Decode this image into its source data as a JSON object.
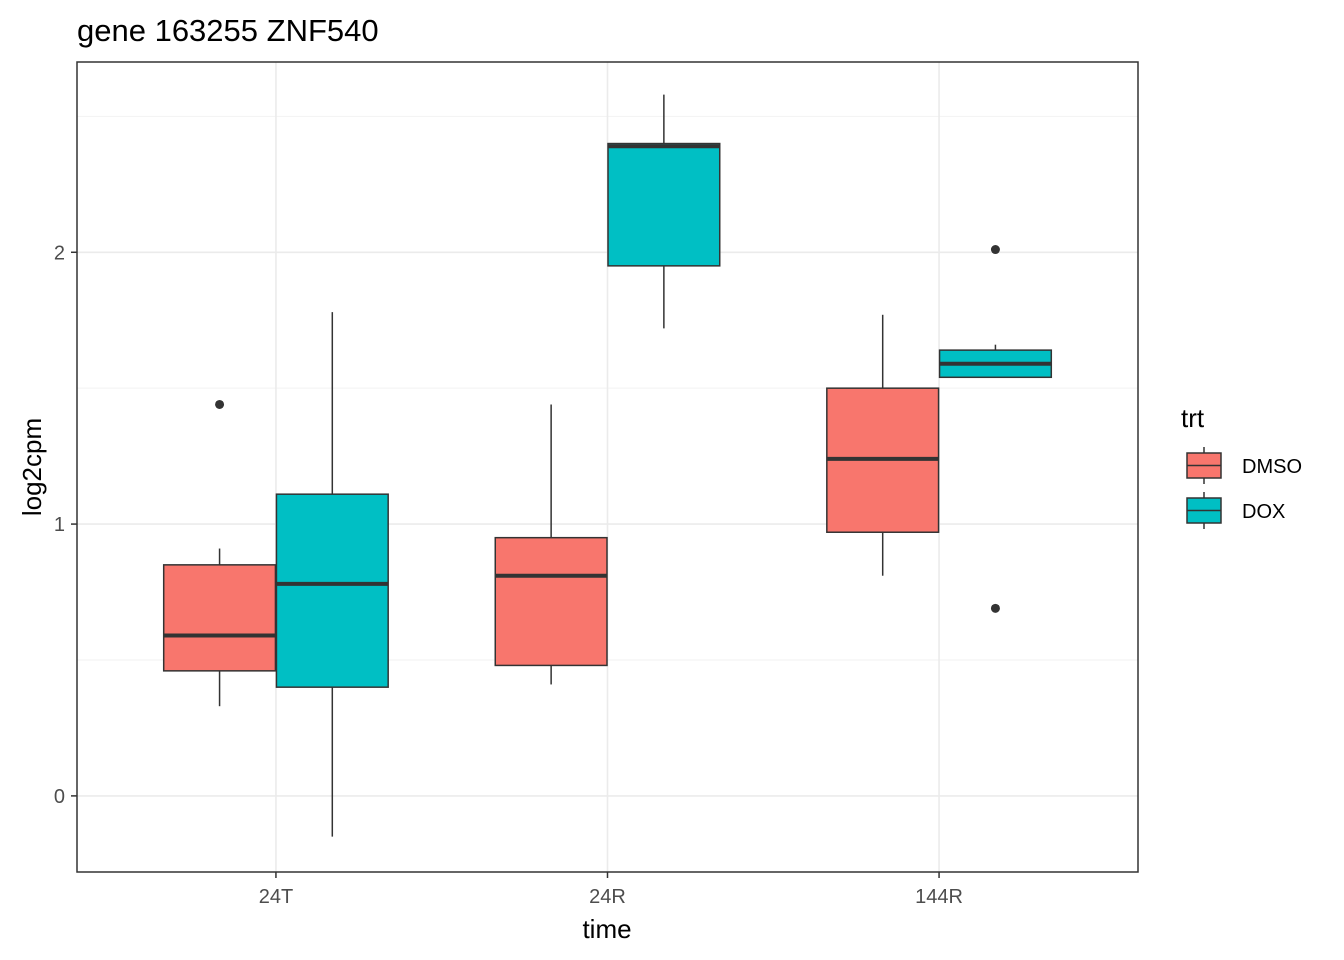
{
  "chart_data": {
    "type": "boxplot",
    "title": "gene 163255 ZNF540",
    "xlabel": "time",
    "ylabel": "log2cpm",
    "categories": [
      "24T",
      "24R",
      "144R"
    ],
    "ylim": [
      -0.28,
      2.7
    ],
    "yticks": [
      0,
      1,
      2
    ],
    "grid": true,
    "legend": {
      "title": "trt",
      "position": "right",
      "entries": [
        {
          "name": "DMSO",
          "color": "#F8766D"
        },
        {
          "name": "DOX",
          "color": "#00BFC4"
        }
      ]
    },
    "series": [
      {
        "name": "DMSO",
        "color": "#F8766D",
        "boxes": [
          {
            "category": "24T",
            "whisker_low": 0.33,
            "q1": 0.46,
            "median": 0.59,
            "q3": 0.85,
            "whisker_high": 0.91,
            "outliers": [
              1.44
            ]
          },
          {
            "category": "24R",
            "whisker_low": 0.41,
            "q1": 0.48,
            "median": 0.81,
            "q3": 0.95,
            "whisker_high": 1.44,
            "outliers": []
          },
          {
            "category": "144R",
            "whisker_low": 0.81,
            "q1": 0.97,
            "median": 1.24,
            "q3": 1.5,
            "whisker_high": 1.77,
            "outliers": []
          }
        ]
      },
      {
        "name": "DOX",
        "color": "#00BFC4",
        "boxes": [
          {
            "category": "24T",
            "whisker_low": -0.15,
            "q1": 0.4,
            "median": 0.78,
            "q3": 1.11,
            "whisker_high": 1.78,
            "outliers": []
          },
          {
            "category": "24R",
            "whisker_low": 1.72,
            "q1": 1.95,
            "median": 2.39,
            "q3": 2.4,
            "whisker_high": 2.58,
            "outliers": []
          },
          {
            "category": "144R",
            "whisker_low": 1.54,
            "q1": 1.54,
            "median": 1.59,
            "q3": 1.64,
            "whisker_high": 1.66,
            "outliers": [
              2.01,
              0.69
            ]
          }
        ]
      }
    ]
  }
}
